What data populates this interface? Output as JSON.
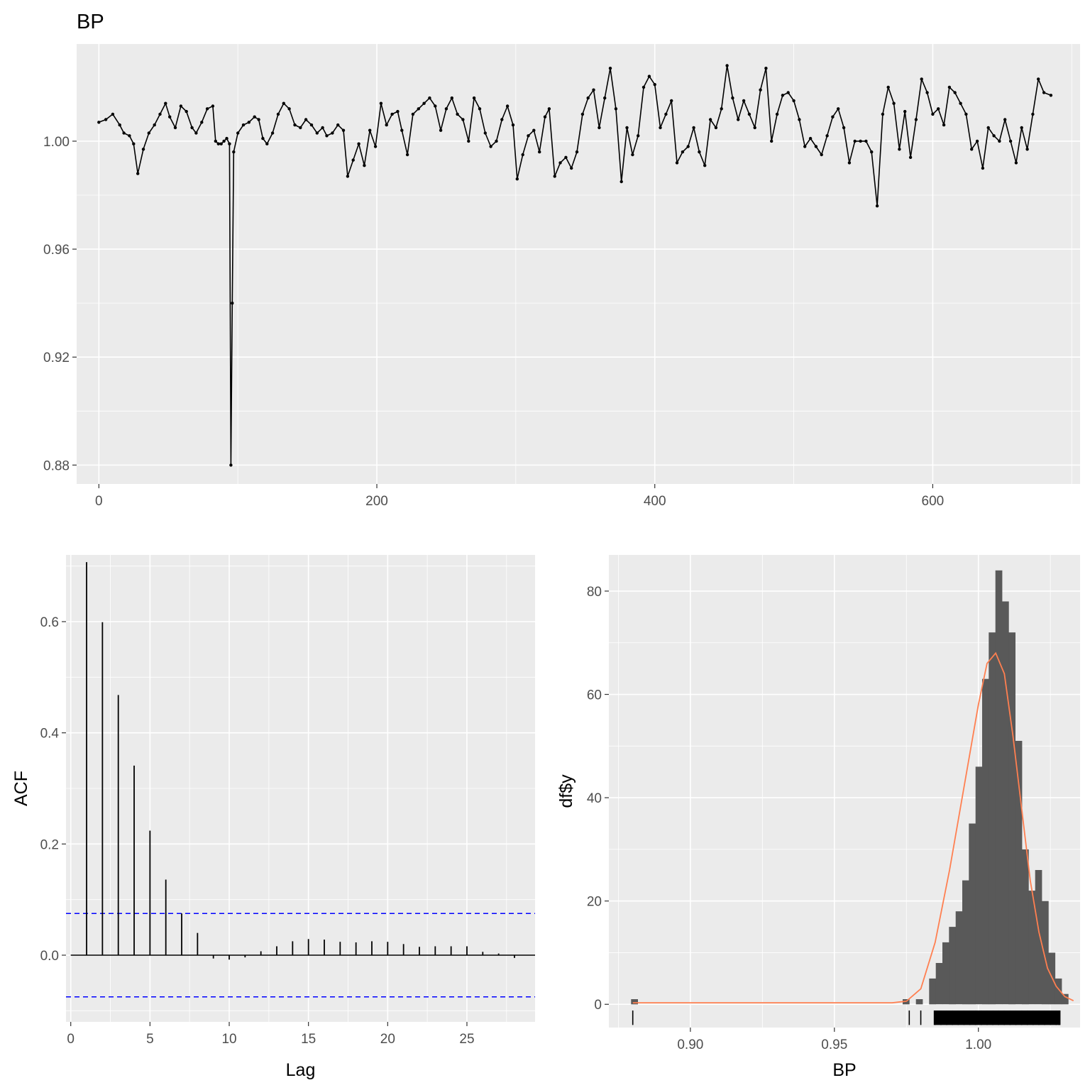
{
  "chart_data": [
    {
      "type": "line",
      "title": "BP",
      "xlabel": "",
      "ylabel": "",
      "xlim": [
        -16,
        706
      ],
      "ylim": [
        0.873,
        1.036
      ],
      "x_ticks": [
        0,
        200,
        400,
        600
      ],
      "y_ticks": [
        0.88,
        0.92,
        0.96,
        1.0
      ],
      "y_tick_labels": [
        "0.88",
        "0.92",
        "0.96",
        "1.00"
      ],
      "grid": true,
      "point_markers": true,
      "color": "#000000",
      "points": [
        [
          0,
          1.007
        ],
        [
          5,
          1.008
        ],
        [
          10,
          1.01
        ],
        [
          15,
          1.006
        ],
        [
          18,
          1.003
        ],
        [
          22,
          1.002
        ],
        [
          25,
          0.999
        ],
        [
          28,
          0.988
        ],
        [
          32,
          0.997
        ],
        [
          36,
          1.003
        ],
        [
          40,
          1.006
        ],
        [
          44,
          1.01
        ],
        [
          48,
          1.014
        ],
        [
          51,
          1.009
        ],
        [
          55,
          1.005
        ],
        [
          59,
          1.013
        ],
        [
          63,
          1.011
        ],
        [
          67,
          1.005
        ],
        [
          70,
          1.003
        ],
        [
          74,
          1.007
        ],
        [
          78,
          1.012
        ],
        [
          82,
          1.013
        ],
        [
          84,
          1.0
        ],
        [
          86,
          0.999
        ],
        [
          88,
          0.999
        ],
        [
          90,
          1.0
        ],
        [
          92,
          1.001
        ],
        [
          94,
          0.999
        ],
        [
          95,
          0.88
        ],
        [
          96,
          0.94
        ],
        [
          97,
          0.996
        ],
        [
          100,
          1.003
        ],
        [
          104,
          1.006
        ],
        [
          108,
          1.007
        ],
        [
          112,
          1.009
        ],
        [
          115,
          1.008
        ],
        [
          118,
          1.001
        ],
        [
          121,
          0.999
        ],
        [
          125,
          1.003
        ],
        [
          129,
          1.01
        ],
        [
          133,
          1.014
        ],
        [
          137,
          1.012
        ],
        [
          141,
          1.006
        ],
        [
          145,
          1.005
        ],
        [
          149,
          1.008
        ],
        [
          153,
          1.006
        ],
        [
          157,
          1.003
        ],
        [
          161,
          1.005
        ],
        [
          164,
          1.002
        ],
        [
          168,
          1.003
        ],
        [
          172,
          1.006
        ],
        [
          176,
          1.004
        ],
        [
          179,
          0.987
        ],
        [
          183,
          0.993
        ],
        [
          187,
          0.999
        ],
        [
          191,
          0.991
        ],
        [
          195,
          1.004
        ],
        [
          199,
          0.998
        ],
        [
          203,
          1.014
        ],
        [
          207,
          1.006
        ],
        [
          211,
          1.01
        ],
        [
          215,
          1.011
        ],
        [
          218,
          1.004
        ],
        [
          222,
          0.995
        ],
        [
          226,
          1.01
        ],
        [
          230,
          1.012
        ],
        [
          234,
          1.014
        ],
        [
          238,
          1.016
        ],
        [
          242,
          1.013
        ],
        [
          246,
          1.004
        ],
        [
          250,
          1.012
        ],
        [
          254,
          1.016
        ],
        [
          258,
          1.01
        ],
        [
          262,
          1.008
        ],
        [
          266,
          1.0
        ],
        [
          270,
          1.016
        ],
        [
          274,
          1.012
        ],
        [
          278,
          1.003
        ],
        [
          282,
          0.998
        ],
        [
          286,
          1.0
        ],
        [
          290,
          1.008
        ],
        [
          294,
          1.013
        ],
        [
          298,
          1.006
        ],
        [
          301,
          0.986
        ],
        [
          305,
          0.995
        ],
        [
          309,
          1.002
        ],
        [
          313,
          1.004
        ],
        [
          317,
          0.996
        ],
        [
          321,
          1.009
        ],
        [
          324,
          1.012
        ],
        [
          328,
          0.987
        ],
        [
          332,
          0.992
        ],
        [
          336,
          0.994
        ],
        [
          340,
          0.99
        ],
        [
          344,
          0.996
        ],
        [
          348,
          1.01
        ],
        [
          352,
          1.016
        ],
        [
          356,
          1.019
        ],
        [
          360,
          1.005
        ],
        [
          364,
          1.016
        ],
        [
          368,
          1.027
        ],
        [
          372,
          1.012
        ],
        [
          376,
          0.985
        ],
        [
          380,
          1.005
        ],
        [
          384,
          0.995
        ],
        [
          388,
          1.002
        ],
        [
          392,
          1.02
        ],
        [
          396,
          1.024
        ],
        [
          400,
          1.021
        ],
        [
          404,
          1.005
        ],
        [
          408,
          1.01
        ],
        [
          412,
          1.015
        ],
        [
          416,
          0.992
        ],
        [
          420,
          0.996
        ],
        [
          424,
          0.998
        ],
        [
          428,
          1.005
        ],
        [
          432,
          0.996
        ],
        [
          436,
          0.991
        ],
        [
          440,
          1.008
        ],
        [
          444,
          1.005
        ],
        [
          448,
          1.012
        ],
        [
          452,
          1.028
        ],
        [
          456,
          1.016
        ],
        [
          460,
          1.008
        ],
        [
          464,
          1.015
        ],
        [
          468,
          1.01
        ],
        [
          472,
          1.005
        ],
        [
          476,
          1.019
        ],
        [
          480,
          1.027
        ],
        [
          484,
          1.0
        ],
        [
          488,
          1.01
        ],
        [
          492,
          1.017
        ],
        [
          496,
          1.018
        ],
        [
          500,
          1.015
        ],
        [
          504,
          1.008
        ],
        [
          508,
          0.998
        ],
        [
          512,
          1.001
        ],
        [
          516,
          0.998
        ],
        [
          520,
          0.995
        ],
        [
          524,
          1.002
        ],
        [
          528,
          1.009
        ],
        [
          532,
          1.012
        ],
        [
          536,
          1.005
        ],
        [
          540,
          0.992
        ],
        [
          544,
          1.0
        ],
        [
          548,
          1.0
        ],
        [
          552,
          1.0
        ],
        [
          556,
          0.996
        ],
        [
          560,
          0.976
        ],
        [
          564,
          1.01
        ],
        [
          568,
          1.02
        ],
        [
          572,
          1.014
        ],
        [
          576,
          0.997
        ],
        [
          580,
          1.011
        ],
        [
          584,
          0.994
        ],
        [
          588,
          1.008
        ],
        [
          592,
          1.023
        ],
        [
          596,
          1.018
        ],
        [
          600,
          1.01
        ],
        [
          604,
          1.012
        ],
        [
          608,
          1.006
        ],
        [
          612,
          1.02
        ],
        [
          616,
          1.018
        ],
        [
          620,
          1.014
        ],
        [
          624,
          1.01
        ],
        [
          628,
          0.997
        ],
        [
          632,
          1.0
        ],
        [
          636,
          0.99
        ],
        [
          640,
          1.005
        ],
        [
          644,
          1.002
        ],
        [
          648,
          1.0
        ],
        [
          652,
          1.008
        ],
        [
          656,
          1.0
        ],
        [
          660,
          0.992
        ],
        [
          664,
          1.005
        ],
        [
          668,
          0.997
        ],
        [
          672,
          1.01
        ],
        [
          676,
          1.023
        ],
        [
          680,
          1.018
        ],
        [
          685,
          1.017
        ]
      ]
    },
    {
      "type": "bar",
      "title": "",
      "xlabel": "Lag",
      "ylabel": "ACF",
      "xlim": [
        -0.3,
        29.3
      ],
      "ylim": [
        -0.12,
        0.72
      ],
      "x_ticks": [
        0,
        5,
        10,
        15,
        20,
        25
      ],
      "y_ticks": [
        0.0,
        0.2,
        0.4,
        0.6
      ],
      "y_tick_labels": [
        "0.0",
        "0.2",
        "0.4",
        "0.6"
      ],
      "grid": true,
      "lags": [
        1,
        2,
        3,
        4,
        5,
        6,
        7,
        8,
        9,
        10,
        11,
        12,
        13,
        14,
        15,
        16,
        17,
        18,
        19,
        20,
        21,
        22,
        23,
        24,
        25,
        26,
        27,
        28
      ],
      "values": [
        0.707,
        0.599,
        0.468,
        0.341,
        0.224,
        0.136,
        0.075,
        0.04,
        -0.006,
        -0.008,
        -0.004,
        0.007,
        0.016,
        0.025,
        0.029,
        0.028,
        0.024,
        0.023,
        0.025,
        0.024,
        0.02,
        0.015,
        0.016,
        0.016,
        0.016,
        0.006,
        0.003,
        -0.005
      ],
      "confidence_band": 0.075,
      "band_color": "#0000ff"
    },
    {
      "type": "bar",
      "title": "",
      "xlabel": "BP",
      "ylabel": "df$y",
      "xlim": [
        0.8717,
        1.0353
      ],
      "ylim": [
        -4.5,
        87
      ],
      "x_ticks": [
        0.9,
        0.95,
        1.0
      ],
      "x_tick_labels": [
        "0.90",
        "0.95",
        "1.00"
      ],
      "y_ticks": [
        0,
        20,
        40,
        60,
        80
      ],
      "grid": true,
      "bar_color": "#595959",
      "density_color": "#ff7f50",
      "bin_width": 0.0023,
      "bins": [
        [
          0.8794,
          0.8817,
          1
        ],
        [
          0.9737,
          0.976,
          1
        ],
        [
          0.9783,
          0.9806,
          1
        ],
        [
          0.9829,
          0.9852,
          5
        ],
        [
          0.9852,
          0.9875,
          8
        ],
        [
          0.9875,
          0.9898,
          12
        ],
        [
          0.9898,
          0.9921,
          15
        ],
        [
          0.9921,
          0.9944,
          18
        ],
        [
          0.9944,
          0.9967,
          24
        ],
        [
          0.9967,
          0.999,
          35
        ],
        [
          0.999,
          1.0013,
          46
        ],
        [
          1.0013,
          1.0036,
          63
        ],
        [
          1.0036,
          1.0059,
          72
        ],
        [
          1.0059,
          1.0082,
          84
        ],
        [
          1.0082,
          1.0105,
          78
        ],
        [
          1.0105,
          1.0128,
          72
        ],
        [
          1.0128,
          1.0151,
          51
        ],
        [
          1.0151,
          1.0174,
          30
        ],
        [
          1.0174,
          1.0197,
          22
        ],
        [
          1.0197,
          1.022,
          26
        ],
        [
          1.022,
          1.0243,
          20
        ],
        [
          1.0243,
          1.0266,
          10
        ],
        [
          1.0266,
          1.0289,
          5
        ],
        [
          1.0289,
          1.0312,
          2
        ]
      ],
      "density": [
        [
          0.88,
          0.3
        ],
        [
          0.97,
          0.3
        ],
        [
          0.975,
          0.6
        ],
        [
          0.98,
          3
        ],
        [
          0.985,
          12
        ],
        [
          0.99,
          26
        ],
        [
          0.995,
          42
        ],
        [
          1.0,
          58
        ],
        [
          1.003,
          66
        ],
        [
          1.006,
          68
        ],
        [
          1.009,
          64
        ],
        [
          1.012,
          52
        ],
        [
          1.015,
          38
        ],
        [
          1.018,
          24
        ],
        [
          1.021,
          14
        ],
        [
          1.024,
          7
        ],
        [
          1.027,
          3.5
        ],
        [
          1.03,
          1.5
        ],
        [
          1.033,
          0.7
        ]
      ],
      "rug": [
        0.88,
        0.976,
        0.98,
        0.985,
        0.987,
        0.989,
        0.991,
        0.993,
        0.995,
        0.997,
        0.999,
        1.001,
        1.003,
        1.005,
        1.007,
        1.009,
        1.011,
        1.013,
        1.015,
        1.017,
        1.019,
        1.021,
        1.023,
        1.025,
        1.027,
        1.028
      ]
    }
  ]
}
